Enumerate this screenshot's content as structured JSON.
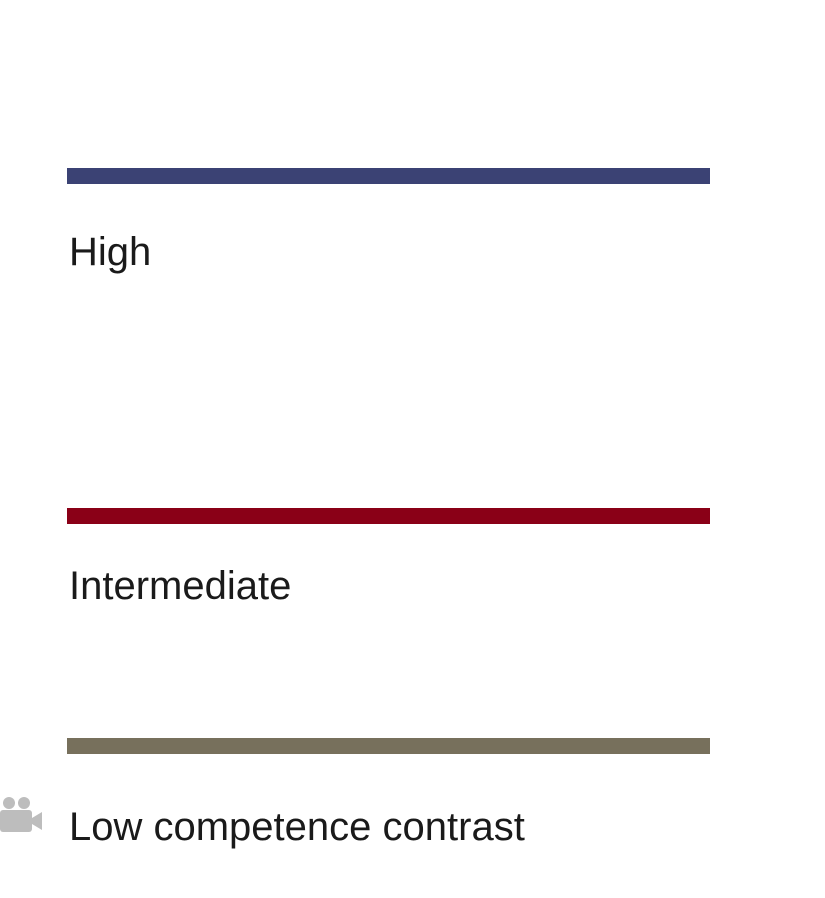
{
  "legend": {
    "items": [
      {
        "label": "High",
        "color": "#3b4274"
      },
      {
        "label": "Intermediate",
        "color": "#8a0017"
      },
      {
        "label": "Low competence contrast",
        "color": "#77705c"
      }
    ]
  },
  "icons": {
    "camera": {
      "name": "video-camera-icon",
      "color": "#bdbdbd"
    }
  }
}
